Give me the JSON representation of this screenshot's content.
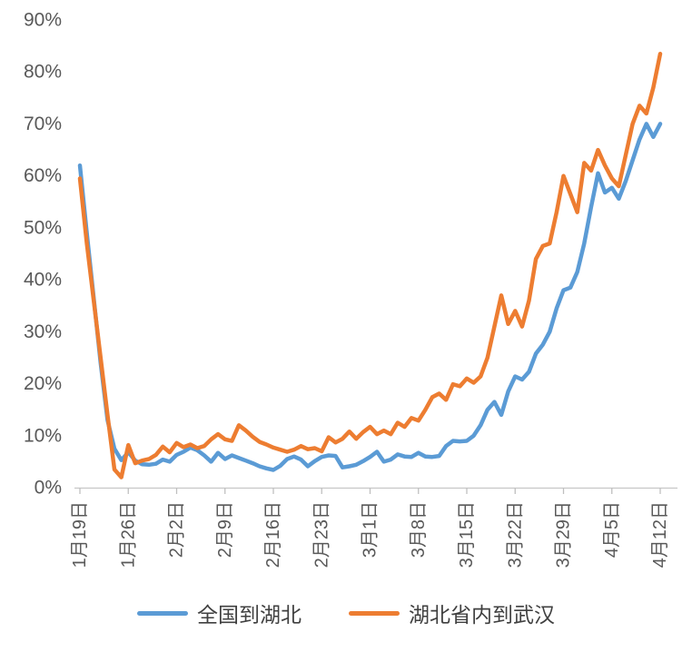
{
  "chart_data": {
    "type": "line",
    "title": "",
    "xlabel": "",
    "ylabel": "",
    "ylim": [
      0,
      90
    ],
    "grid": "off",
    "legend_position": "bottom",
    "y_ticks": [
      "0%",
      "10%",
      "20%",
      "30%",
      "40%",
      "50%",
      "60%",
      "70%",
      "80%",
      "90%"
    ],
    "x_tick_labels": [
      "1月19日",
      "1月26日",
      "2月2日",
      "2月9日",
      "2月16日",
      "2月23日",
      "3月1日",
      "3月8日",
      "3月15日",
      "3月22日",
      "3月29日",
      "4月5日",
      "4月12日"
    ],
    "x_tick_indices": [
      0,
      7,
      14,
      21,
      28,
      35,
      42,
      49,
      56,
      63,
      70,
      77,
      84
    ],
    "x": [
      "1月19日",
      "1月20日",
      "1月21日",
      "1月22日",
      "1月23日",
      "1月24日",
      "1月25日",
      "1月26日",
      "1月27日",
      "1月28日",
      "1月29日",
      "1月30日",
      "1月31日",
      "2月1日",
      "2月2日",
      "2月3日",
      "2月4日",
      "2月5日",
      "2月6日",
      "2月7日",
      "2月8日",
      "2月9日",
      "2月10日",
      "2月11日",
      "2月12日",
      "2月13日",
      "2月14日",
      "2月15日",
      "2月16日",
      "2月17日",
      "2月18日",
      "2月19日",
      "2月20日",
      "2月21日",
      "2月22日",
      "2月23日",
      "2月24日",
      "2月25日",
      "2月26日",
      "2月27日",
      "2月28日",
      "2月29日",
      "3月1日",
      "3月2日",
      "3月3日",
      "3月4日",
      "3月5日",
      "3月6日",
      "3月7日",
      "3月8日",
      "3月9日",
      "3月10日",
      "3月11日",
      "3月12日",
      "3月13日",
      "3月14日",
      "3月15日",
      "3月16日",
      "3月17日",
      "3月18日",
      "3月19日",
      "3月20日",
      "3月21日",
      "3月22日",
      "3月23日",
      "3月24日",
      "3月25日",
      "3月26日",
      "3月27日",
      "3月28日",
      "3月29日",
      "3月30日",
      "3月31日",
      "4月1日",
      "4月2日",
      "4月3日",
      "4月4日",
      "4月5日",
      "4月6日",
      "4月7日",
      "4月8日",
      "4月9日",
      "4月10日",
      "4月11日",
      "4月12日"
    ],
    "series": [
      {
        "name": "全国到湖北",
        "color": "#5B9BD5",
        "values": [
          62,
          49,
          36.5,
          24,
          13,
          7.5,
          5.3,
          6.8,
          5.2,
          4.5,
          4.4,
          4.6,
          5.4,
          5.0,
          6.3,
          6.9,
          7.7,
          7.2,
          6.2,
          5.0,
          6.7,
          5.5,
          6.2,
          5.7,
          5.2,
          4.7,
          4.1,
          3.7,
          3.4,
          4.2,
          5.5,
          6.0,
          5.4,
          4.1,
          5.1,
          5.9,
          6.2,
          6.1,
          3.9,
          4.1,
          4.4,
          5.1,
          5.9,
          6.9,
          5.0,
          5.4,
          6.4,
          6.0,
          5.9,
          6.7,
          6.0,
          5.9,
          6.1,
          8.0,
          9.0,
          8.9,
          9.0,
          10.0,
          12.0,
          15.0,
          16.5,
          14.0,
          18.5,
          21.4,
          20.8,
          22.3,
          25.8,
          27.5,
          30.0,
          34.5,
          38.0,
          38.5,
          41.5,
          47.0,
          54.0,
          60.5,
          56.8,
          57.7,
          55.6,
          59.0,
          63.0,
          67.0,
          70.0,
          67.5,
          70.0
        ]
      },
      {
        "name": "湖北省内到武汉",
        "color": "#ED7D31",
        "values": [
          59.5,
          47,
          36,
          25,
          14,
          3.5,
          2.0,
          8.2,
          4.7,
          5.2,
          5.5,
          6.3,
          7.9,
          6.8,
          8.6,
          7.8,
          8.3,
          7.6,
          8.0,
          9.3,
          10.3,
          9.3,
          9.0,
          12.0,
          11.0,
          9.8,
          8.8,
          8.3,
          7.7,
          7.3,
          6.9,
          7.3,
          8.0,
          7.4,
          7.6,
          7.0,
          9.7,
          8.7,
          9.4,
          10.8,
          9.4,
          10.7,
          11.7,
          10.3,
          11.0,
          10.3,
          12.5,
          11.7,
          13.4,
          12.9,
          15.0,
          17.4,
          18.1,
          16.9,
          19.9,
          19.5,
          21.0,
          20.2,
          21.4,
          25.0,
          31.0,
          37.0,
          31.5,
          34.0,
          31.0,
          36.0,
          44.0,
          46.5,
          47.0,
          53.0,
          60.0,
          56.5,
          53.0,
          62.5,
          61.0,
          65.0,
          62.0,
          59.5,
          58.0,
          64.0,
          70.0,
          73.5,
          72.0,
          77.0,
          83.5
        ]
      }
    ]
  },
  "colors": {
    "axis_text": "#595959",
    "legend_text": "#404040",
    "axis_line": "#C6C6C6",
    "tick_mark": "#BFBFBF",
    "background": "#FFFFFF"
  }
}
